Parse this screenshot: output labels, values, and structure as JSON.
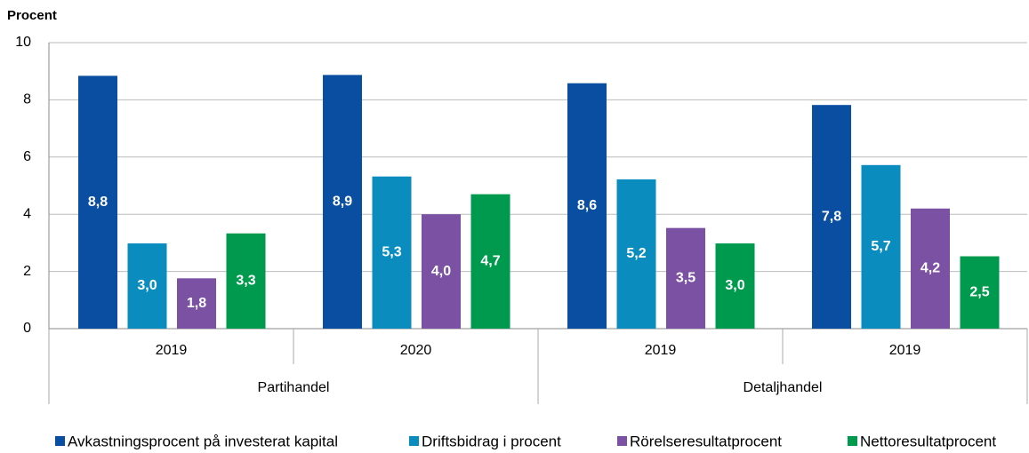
{
  "chart_data": {
    "type": "bar",
    "y_label": "Procent",
    "groups": [
      {
        "name": "Partihandel",
        "categories": [
          "2019",
          "2020"
        ]
      },
      {
        "name": "Detaljhandel",
        "categories": [
          "2019",
          "2019"
        ]
      }
    ],
    "series": [
      {
        "name": "Avkastningsprocent på investerat kapital",
        "color": "#0a4ea2",
        "values": [
          8.84,
          8.87,
          8.58,
          7.82
        ],
        "value_labels": [
          "8,8",
          "8,9",
          "8,6",
          "7,8"
        ]
      },
      {
        "name": "Driftsbidrag i procent",
        "color": "#0a8cbf",
        "values": [
          2.98,
          5.32,
          5.22,
          5.72
        ],
        "value_labels": [
          "3,0",
          "5,3",
          "5,2",
          "5,7"
        ]
      },
      {
        "name": "Rörelseresultatprocent",
        "color": "#7a51a3",
        "values": [
          1.76,
          4.0,
          3.52,
          4.2
        ],
        "value_labels": [
          "1,8",
          "4,0",
          "3,5",
          "4,2"
        ]
      },
      {
        "name": "Nettoresultatprocent",
        "color": "#009a4e",
        "values": [
          3.33,
          4.7,
          2.98,
          2.53
        ],
        "value_labels": [
          "3,3",
          "4,7",
          "3,0",
          "2,5"
        ]
      }
    ],
    "ylim": [
      0,
      10
    ],
    "yticks": [
      0,
      2,
      4,
      6,
      8,
      10
    ],
    "grid": true
  }
}
